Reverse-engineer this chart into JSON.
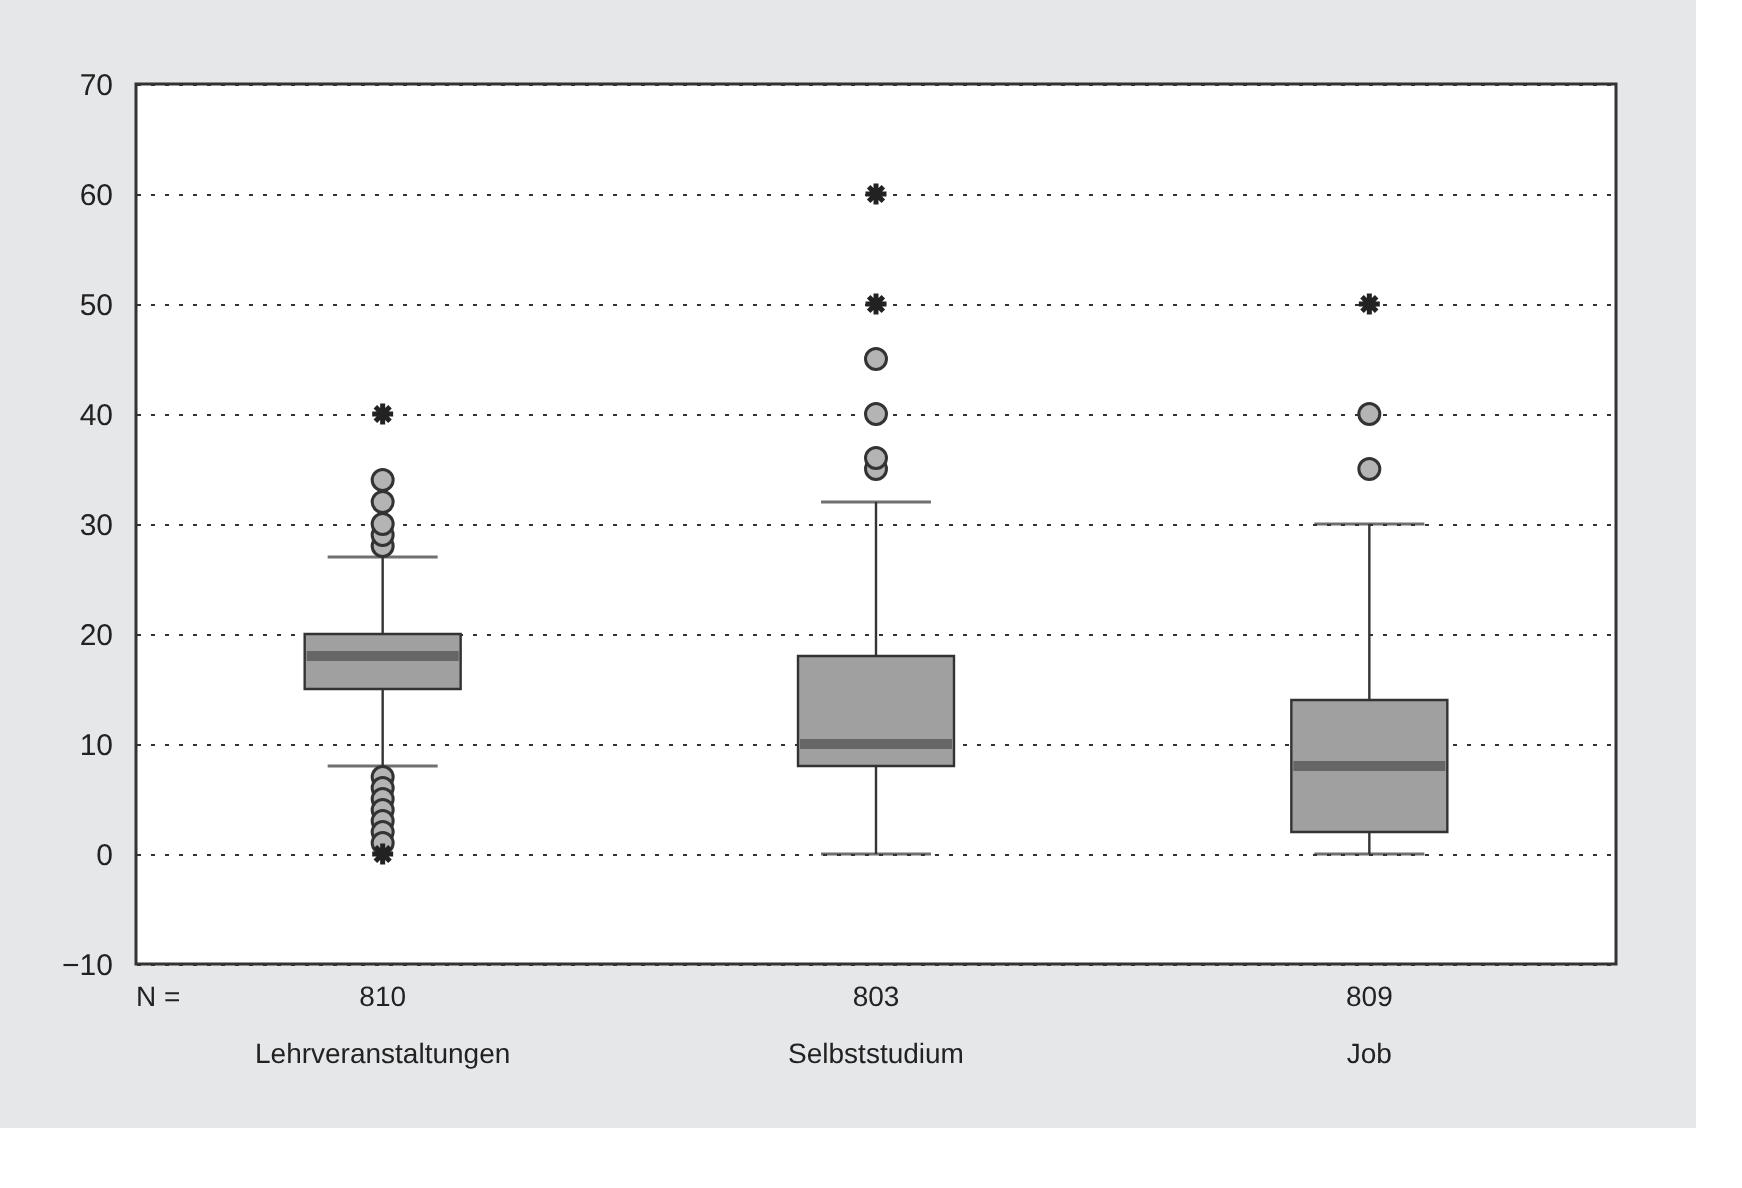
{
  "chart_data": {
    "type": "box",
    "categories": [
      "Lehrveranstaltungen",
      "Selbststudium",
      "Job"
    ],
    "color": "#a0a0a0",
    "boxes": [
      {
        "low": 8,
        "q1": 15,
        "median": 18,
        "q3": 20,
        "high": 27,
        "outliers": [
          28,
          29,
          30,
          32,
          34,
          7,
          6,
          5,
          4,
          3,
          2,
          1
        ]
      },
      {
        "low": 0,
        "q1": 8,
        "median": 10,
        "q3": 18,
        "high": 32,
        "outliers": [
          35,
          36,
          40,
          45
        ]
      },
      {
        "low": 0,
        "q1": 2,
        "median": 8,
        "q3": 14,
        "high": 30,
        "outliers": [
          35,
          40
        ]
      }
    ],
    "series": [
      {
        "type": "scatter",
        "marker": "cross",
        "color": "#222222",
        "x": [
          "Lehrveranstaltungen",
          "Lehrveranstaltungen",
          "Selbststudium",
          "Selbststudium",
          "Job"
        ],
        "values": [
          40,
          0,
          50,
          60,
          50
        ]
      }
    ],
    "ylim": [
      -10,
      70
    ],
    "yticks": [
      -10,
      0,
      10,
      20,
      30,
      40,
      50,
      60,
      70
    ],
    "grid": "y",
    "annotations": [
      "N =",
      "810",
      "803",
      "809"
    ]
  }
}
